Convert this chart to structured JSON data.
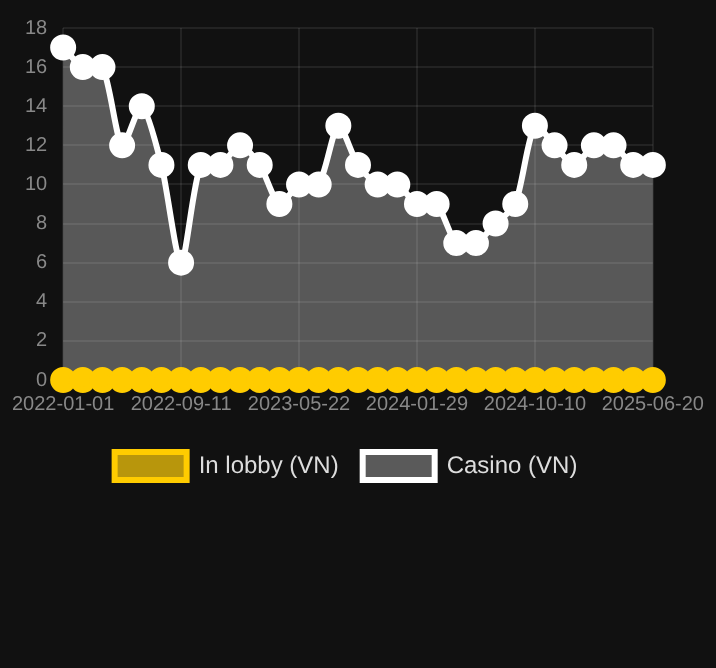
{
  "chart_data": {
    "type": "area",
    "categories": [
      "2022-01-01",
      null,
      null,
      null,
      null,
      null,
      "2022-09-11",
      null,
      null,
      null,
      null,
      null,
      "2023-05-22",
      null,
      null,
      null,
      null,
      null,
      "2024-01-29",
      null,
      null,
      null,
      null,
      null,
      "2024-10-10",
      null,
      null,
      null,
      null,
      null,
      "2025-06-20"
    ],
    "series": [
      {
        "name": "In lobby (VN)",
        "type": "line",
        "color": "#ffcc00",
        "values": [
          0,
          0,
          0,
          0,
          0,
          0,
          0,
          0,
          0,
          0,
          0,
          0,
          0,
          0,
          0,
          0,
          0,
          0,
          0,
          0,
          0,
          0,
          0,
          0,
          0,
          0,
          0,
          0,
          0,
          0,
          0
        ]
      },
      {
        "name": "Casino (VN)",
        "color": "#ffffff",
        "values": [
          17,
          16,
          16,
          12,
          14,
          11,
          6,
          11,
          11,
          12,
          11,
          9,
          10,
          10,
          13,
          11,
          10,
          10,
          9,
          9,
          7,
          7,
          8,
          9,
          13,
          12,
          11,
          12,
          12,
          11,
          11
        ]
      }
    ],
    "ylim": [
      0,
      18
    ],
    "yticks": [
      0,
      2,
      4,
      6,
      8,
      10,
      12,
      14,
      16,
      18
    ],
    "grid": true,
    "legend": "bottom",
    "marker": "circle",
    "line_style": "solid"
  }
}
